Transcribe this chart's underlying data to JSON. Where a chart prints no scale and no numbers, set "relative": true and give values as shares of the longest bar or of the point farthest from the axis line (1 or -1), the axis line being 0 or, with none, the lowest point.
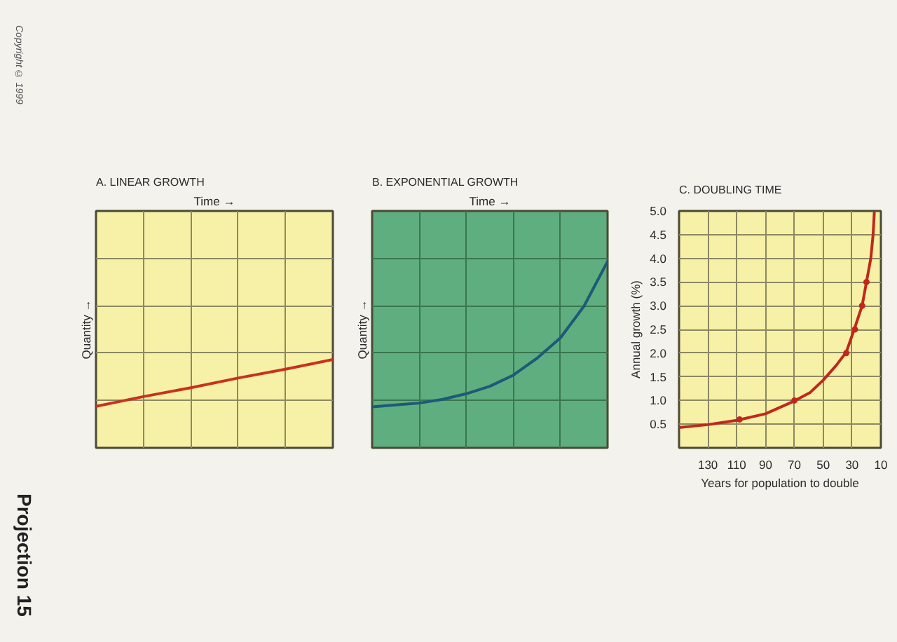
{
  "chart_data": [
    {
      "type": "other",
      "annotations": [
        "Copyright © 1999",
        "Projection 15"
      ]
    },
    {
      "type": "line",
      "title": "A. LINEAR GROWTH",
      "xlabel": "Time →",
      "ylabel": "Quantity →",
      "relative": true,
      "grid": true,
      "categories": [
        null,
        null,
        null,
        null,
        null,
        null
      ],
      "series": [
        {
          "color": "#c8321e",
          "values": [
            0.47,
            0.58,
            0.68,
            0.79,
            0.89,
            1
          ]
        }
      ]
    },
    {
      "type": "line",
      "title": "B. EXPONENTIAL GROWTH",
      "xlabel": "Time →",
      "ylabel": "Quantity →",
      "relative": true,
      "grid": true,
      "categories": [
        null,
        null,
        null,
        null,
        null,
        null,
        null,
        null,
        null,
        null,
        null
      ],
      "series": [
        {
          "color": "#1d5a78",
          "values": [
            0.22,
            0.23,
            0.24,
            0.26,
            0.29,
            0.33,
            0.39,
            0.48,
            0.59,
            0.76,
            1
          ]
        }
      ]
    },
    {
      "type": "line",
      "title": "C. DOUBLING TIME",
      "xlabel": "Years for population to double",
      "ylabel": "Annual growth (%)",
      "xlim": [
        150,
        10
      ],
      "xticks": [
        130,
        110,
        90,
        70,
        50,
        30,
        10
      ],
      "ylim": [
        0,
        5
      ],
      "yticks": [
        0.5,
        {
          "value": 1,
          "label": "1.0"
        },
        1.5,
        {
          "value": 2,
          "label": "2.0"
        },
        2.5,
        {
          "value": 3,
          "label": "3.0"
        },
        3.5,
        {
          "value": 4,
          "label": "4.0"
        },
        4.5,
        {
          "value": 5,
          "label": "5.0"
        }
      ],
      "grid": true,
      "series": [
        {
          "color": "#c0281c",
          "x": [
            150,
            130,
            110,
            90,
            70,
            59,
            50,
            41,
            34,
            28.5,
            23,
            20,
            17,
            15.4,
            14.5
          ],
          "values": [
            0.43,
            0.49,
            0.58,
            0.72,
            0.99,
            1.17,
            1.43,
            1.74,
            2.02,
            2.5,
            3.0,
            3.5,
            4.0,
            4.5,
            5.0
          ]
        },
        {
          "type": "scatter",
          "marker": "circle",
          "color": "#c0281c",
          "x": [
            108,
            70,
            34,
            28,
            23,
            20
          ],
          "values": [
            0.6,
            1.0,
            2.0,
            2.5,
            3.0,
            3.5
          ]
        }
      ]
    }
  ]
}
